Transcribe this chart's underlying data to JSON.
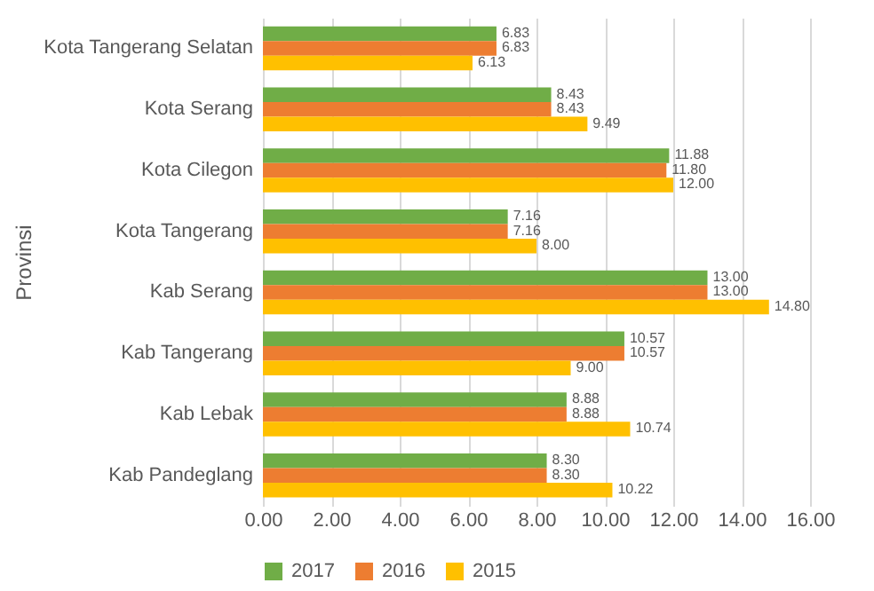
{
  "chart_data": {
    "type": "bar",
    "orientation": "horizontal",
    "ylabel": "Provinsi",
    "categories": [
      "Kota Tangerang Selatan",
      "Kota Serang",
      "Kota Cilegon",
      "Kota Tangerang",
      "Kab Serang",
      "Kab Tangerang",
      "Kab Lebak",
      "Kab Pandeglang"
    ],
    "series": [
      {
        "name": "2017",
        "color": "#70ad47",
        "values": [
          6.83,
          8.43,
          11.88,
          7.16,
          13.0,
          10.57,
          8.88,
          8.3
        ],
        "value_labels": [
          "6.83",
          "8.43",
          "11.88",
          "7.16",
          "13.00",
          "10.57",
          "8.88",
          "8.30"
        ]
      },
      {
        "name": "2016",
        "color": "#ed7d31",
        "values": [
          6.83,
          8.43,
          11.8,
          7.16,
          13.0,
          10.57,
          8.88,
          8.3
        ],
        "value_labels": [
          "6.83",
          "8.43",
          "11.80",
          "7.16",
          "13.00",
          "10.57",
          "8.88",
          "8.30"
        ]
      },
      {
        "name": "2015",
        "color": "#ffc000",
        "values": [
          6.13,
          9.49,
          12.0,
          8.0,
          14.8,
          9.0,
          10.74,
          10.22
        ],
        "value_labels": [
          "6.13",
          "9.49",
          "12.00",
          "8.00",
          "14.80",
          "9.00",
          "10.74",
          "10.22"
        ]
      }
    ],
    "xlim": [
      0,
      16
    ],
    "xticks": [
      {
        "value": 0,
        "label": "0.00"
      },
      {
        "value": 2,
        "label": "2.00"
      },
      {
        "value": 4,
        "label": "4.00"
      },
      {
        "value": 6,
        "label": "6.00"
      },
      {
        "value": 8,
        "label": "8.00"
      },
      {
        "value": 10,
        "label": "10.00"
      },
      {
        "value": 12,
        "label": "12.00"
      },
      {
        "value": 14,
        "label": "14.00"
      },
      {
        "value": 16,
        "label": "16.00"
      }
    ],
    "grid": "x",
    "legend": "bottom"
  }
}
